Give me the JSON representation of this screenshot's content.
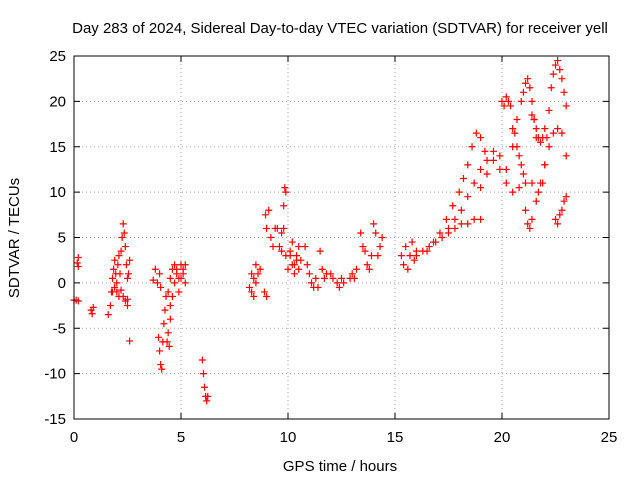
{
  "chart_data": {
    "type": "scatter",
    "title": "Day 283 of 2024, Sidereal Day-to-day VTEC variation (SDTVAR) for receiver yell",
    "xlabel": "GPS time / hours",
    "ylabel": "SDTVAR / TECUs",
    "xlim": [
      0,
      25
    ],
    "ylim": [
      -15,
      25
    ],
    "xticks": [
      0,
      5,
      10,
      15,
      20,
      25
    ],
    "yticks": [
      -15,
      -10,
      -5,
      0,
      5,
      10,
      15,
      20,
      25
    ],
    "grid": true,
    "marker": "+",
    "color": "#ff0000",
    "segments": [
      {
        "x": [
          0.0,
          0.1,
          0.2
        ],
        "y": [
          -1.9,
          -1.9,
          -2.0
        ]
      },
      {
        "x": [
          0.15,
          0.2,
          0.2
        ],
        "y": [
          2.2,
          2.8,
          1.8
        ]
      },
      {
        "x": [
          0.8,
          0.85,
          0.9
        ],
        "y": [
          -3.0,
          -3.4,
          -2.7
        ]
      },
      {
        "x": [
          1.6,
          1.7,
          1.75,
          1.8,
          1.85,
          1.9,
          1.95,
          2.0,
          2.05,
          2.1,
          2.15,
          2.2,
          2.25,
          2.3,
          2.35,
          2.4,
          2.45,
          2.5
        ],
        "y": [
          -3.5,
          -2.5,
          -1.0,
          0.5,
          1.5,
          2.5,
          1.0,
          0.0,
          2.0,
          3.0,
          1.0,
          3.5,
          5.0,
          6.5,
          5.5,
          4.0,
          2.0,
          0.5
        ]
      },
      {
        "x": [
          1.8,
          1.9,
          2.0,
          2.1,
          2.2,
          2.3,
          2.4,
          2.5
        ],
        "y": [
          -1.0,
          -0.5,
          -1.0,
          -1.5,
          -0.8,
          -1.5,
          -2.0,
          -1.8
        ]
      },
      {
        "x": [
          2.5,
          2.55,
          2.6
        ],
        "y": [
          -2.5,
          1.0,
          2.5
        ]
      },
      {
        "x": [
          2.6
        ],
        "y": [
          -6.4
        ]
      },
      {
        "x": [
          3.7,
          3.8,
          3.9,
          4.0,
          4.05
        ],
        "y": [
          0.3,
          1.5,
          0.0,
          1.0,
          -0.5
        ]
      },
      {
        "x": [
          3.95,
          4.0,
          4.05,
          4.1,
          4.15,
          4.2,
          4.25,
          4.3,
          4.35,
          4.4,
          4.45,
          4.5
        ],
        "y": [
          -6.0,
          -7.5,
          -9.0,
          -9.5,
          -6.5,
          -4.5,
          -3.0,
          -1.5,
          -6.5,
          -5.5,
          -7.0,
          -4.0
        ]
      },
      {
        "x": [
          4.4,
          4.5,
          4.6,
          4.7,
          4.8,
          4.9,
          5.0,
          5.1,
          5.2
        ],
        "y": [
          -1.0,
          -2.5,
          -1.5,
          0.0,
          1.5,
          0.5,
          2.0,
          1.0,
          0.0
        ]
      },
      {
        "x": [
          4.5,
          4.6,
          4.7,
          4.8,
          4.9,
          5.0,
          5.1,
          5.2
        ],
        "y": [
          0.5,
          1.5,
          2.0,
          1.0,
          -1.0,
          0.5,
          1.5,
          2.0
        ]
      },
      {
        "x": [
          6.0,
          6.05,
          6.1,
          6.15,
          6.2,
          6.25
        ],
        "y": [
          -8.5,
          -10.0,
          -11.5,
          -12.5,
          -13.0,
          -12.5
        ]
      },
      {
        "x": [
          8.2,
          8.3,
          8.4,
          8.5,
          8.6,
          8.7
        ],
        "y": [
          -0.5,
          1.0,
          0.5,
          2.0,
          1.0,
          1.5
        ]
      },
      {
        "x": [
          8.3,
          8.4,
          8.5
        ],
        "y": [
          -1.0,
          -1.5,
          0.0
        ]
      },
      {
        "x": [
          8.9,
          9.0
        ],
        "y": [
          -1.0,
          -1.5
        ]
      },
      {
        "x": [
          8.95,
          9.0,
          9.1,
          9.2,
          9.3,
          9.4
        ],
        "y": [
          7.5,
          6.0,
          8.0,
          5.0,
          4.0,
          6.0
        ]
      },
      {
        "x": [
          9.5,
          9.6,
          9.7,
          9.8,
          9.85,
          9.9
        ],
        "y": [
          6.0,
          4.0,
          5.5,
          8.5,
          10.5,
          10.0
        ]
      },
      {
        "x": [
          9.7,
          9.8,
          9.9
        ],
        "y": [
          3.5,
          6.0,
          3.0
        ]
      },
      {
        "x": [
          10.0,
          10.1,
          10.2,
          10.3,
          10.4,
          10.5,
          10.6
        ],
        "y": [
          1.5,
          3.0,
          4.5,
          2.0,
          3.0,
          4.0,
          2.5
        ]
      },
      {
        "x": [
          10.1,
          10.2,
          10.3,
          10.4,
          10.5
        ],
        "y": [
          3.5,
          2.0,
          1.0,
          2.5,
          1.5
        ]
      },
      {
        "x": [
          10.8,
          10.9,
          11.0,
          11.1,
          11.2,
          11.3,
          11.4
        ],
        "y": [
          4.0,
          2.0,
          1.0,
          0.0,
          -0.5,
          0.5,
          -0.5
        ]
      },
      {
        "x": [
          11.5,
          11.6,
          11.7,
          11.8
        ],
        "y": [
          3.5,
          1.5,
          0.5,
          1.0
        ]
      },
      {
        "x": [
          12.0,
          12.1
        ],
        "y": [
          1.0,
          0.5
        ]
      },
      {
        "x": [
          12.3,
          12.4,
          12.5,
          12.6
        ],
        "y": [
          0.0,
          -0.5,
          0.5,
          0.0
        ]
      },
      {
        "x": [
          12.9,
          13.0,
          13.1,
          13.2
        ],
        "y": [
          0.5,
          1.0,
          0.5,
          1.5
        ]
      },
      {
        "x": [
          13.4,
          13.5,
          13.6,
          13.7,
          13.8,
          13.9
        ],
        "y": [
          5.5,
          4.0,
          3.5,
          2.0,
          1.5,
          3.0
        ]
      },
      {
        "x": [
          14.0,
          14.1,
          14.2,
          14.3,
          14.4
        ],
        "y": [
          6.5,
          5.5,
          3.0,
          4.0,
          5.0
        ]
      },
      {
        "x": [
          15.3,
          15.4,
          15.5,
          15.6,
          15.7,
          15.8,
          15.9,
          16.0
        ],
        "y": [
          3.0,
          2.0,
          4.0,
          1.5,
          3.0,
          4.5,
          2.5,
          3.5
        ]
      },
      {
        "x": [
          16.0,
          16.3,
          16.6,
          16.9,
          17.2,
          17.5,
          17.8,
          18.1,
          18.4,
          18.7,
          19.0
        ],
        "y": [
          3.0,
          3.5,
          4.0,
          4.5,
          5.0,
          5.5,
          6.0,
          6.5,
          6.5,
          7.0,
          7.0
        ]
      },
      {
        "x": [
          16.5,
          16.8,
          17.1,
          17.4,
          17.7,
          18.0,
          18.2,
          18.4,
          18.6,
          18.8,
          19.0,
          19.2
        ],
        "y": [
          3.5,
          4.5,
          5.5,
          7.0,
          8.5,
          10.0,
          11.5,
          13.0,
          15.0,
          16.5,
          16.0,
          14.5
        ]
      },
      {
        "x": [
          17.5,
          17.8,
          18.1,
          18.4,
          18.7,
          19.0,
          19.3,
          19.6,
          19.9,
          20.2
        ],
        "y": [
          6.0,
          7.0,
          8.0,
          9.5,
          11.0,
          12.5,
          13.5,
          14.5,
          14.0,
          12.5
        ]
      },
      {
        "x": [
          19.0,
          19.3,
          19.6,
          19.9,
          20.2,
          20.5,
          20.8,
          21.1,
          21.4,
          21.7
        ],
        "y": [
          10.5,
          12.0,
          13.5,
          12.5,
          11.0,
          10.0,
          10.5,
          11.0,
          11.0,
          10.0
        ]
      },
      {
        "x": [
          20.0,
          20.1,
          20.2,
          20.3,
          20.4,
          20.5,
          20.6,
          20.7,
          20.8,
          20.9,
          21.0,
          21.1,
          21.2,
          21.3,
          21.4
        ],
        "y": [
          20.0,
          19.5,
          20.5,
          20.0,
          19.5,
          17.0,
          16.5,
          15.0,
          14.0,
          13.0,
          12.0,
          8.0,
          6.5,
          6.0,
          7.0
        ]
      },
      {
        "x": [
          20.5,
          20.7,
          20.9,
          21.0,
          21.1,
          21.2,
          21.3,
          21.4,
          21.5,
          21.6
        ],
        "y": [
          15.0,
          18.0,
          20.0,
          21.0,
          22.0,
          22.5,
          21.5,
          20.0,
          18.0,
          16.0
        ]
      },
      {
        "x": [
          21.4,
          21.5,
          21.6,
          21.7,
          21.8,
          21.9,
          22.0
        ],
        "y": [
          18.5,
          18.0,
          17.0,
          16.0,
          15.5,
          16.0,
          17.0
        ]
      },
      {
        "x": [
          21.6,
          21.8,
          22.0,
          22.2,
          22.4,
          22.6,
          22.8,
          23.0
        ],
        "y": [
          9.0,
          11.0,
          13.0,
          15.0,
          16.5,
          17.0,
          16.5,
          14.0
        ]
      },
      {
        "x": [
          21.9,
          22.0,
          22.1,
          22.2,
          22.3,
          22.4,
          22.5,
          22.6,
          22.7,
          22.8,
          22.9,
          23.0
        ],
        "y": [
          11.0,
          13.0,
          16.0,
          19.0,
          21.5,
          23.0,
          24.0,
          24.5,
          23.5,
          22.5,
          21.0,
          19.5
        ]
      },
      {
        "x": [
          22.5,
          22.6,
          22.7,
          22.8,
          22.9,
          23.0
        ],
        "y": [
          7.0,
          6.5,
          7.5,
          8.0,
          9.0,
          9.5
        ]
      }
    ]
  }
}
